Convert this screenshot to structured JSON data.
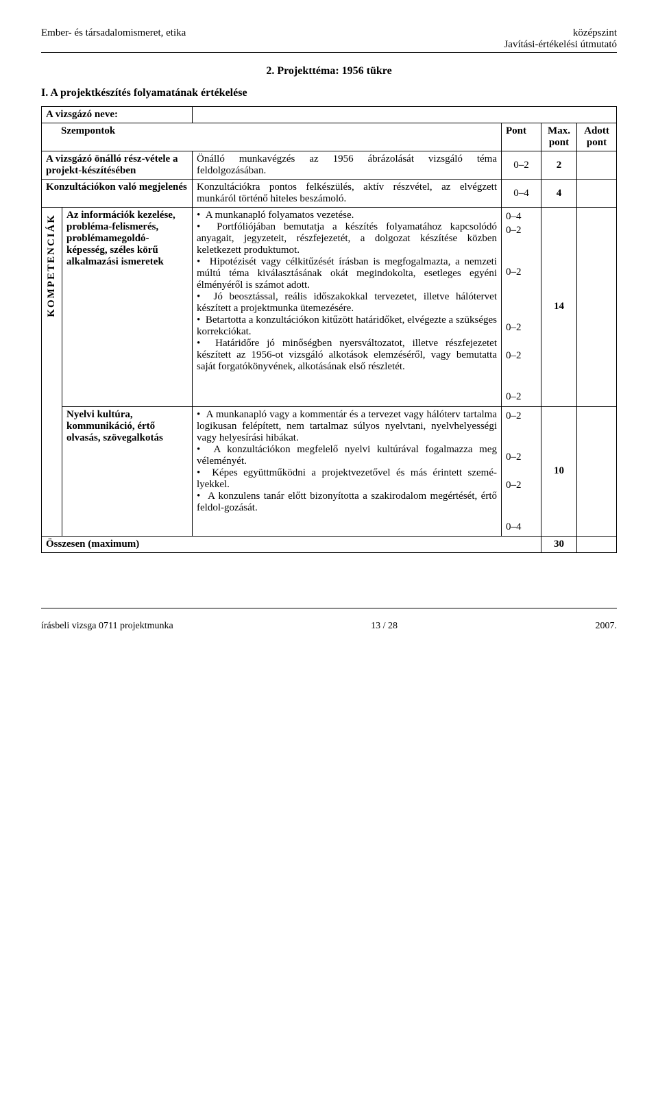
{
  "header": {
    "left": "Ember- és társadalomismeret, etika",
    "right_top": "középszint",
    "right_bottom": "Javítási-értékelési útmutató"
  },
  "section_title": "2. Projekttéma: 1956 tükre",
  "subsection_title": "I. A projektkészítés folyamatának értékelése",
  "table": {
    "name_label": "A vizsgázó neve:",
    "col_szempontok": "Szempontok",
    "col_pont": "Pont",
    "col_max_l1": "Max.",
    "col_max_l2": "pont",
    "col_adott_l1": "Adott",
    "col_adott_l2": "pont",
    "row1": {
      "label": "A vizsgázó önálló rész-vétele a projekt-készítésében",
      "desc": "Önálló munkavégzés az 1956 ábrázolását vizsgáló téma feldolgozásában.",
      "pont": "0–2",
      "max": "2"
    },
    "row2": {
      "label": "Konzultációkon való megjelenés",
      "desc": "Konzultációkra pontos felkészülés, aktív részvétel, az elvégzett munkáról történő hiteles beszámoló.",
      "pont": "0–4",
      "max": "4"
    },
    "vertical_label": "KOMPETENCIÁK",
    "row3": {
      "label": "Az információk kezelése, probléma-felismerés, problémamegoldó-képesség, széles körű alkalmazási ismeretek",
      "b1": "A munkanapló folyamatos vezetése.",
      "b2": "Portfóliójában bemutatja a készítés folyamatához kapcsolódó anyagait, jegyzeteit, részfejezetét, a dolgozat készítése közben keletkezett produktumot.",
      "b3": "Hipotézisét vagy célkitűzését írásban is megfogalmazta, a nemzeti múltú téma kiválasztásának okát megindokolta, esetleges egyéni élményéről is számot adott.",
      "b4": "Jó beosztással, reális időszakokkal tervezetet, illetve hálótervet készített a projektmunka ütemezésére.",
      "b5": "Betartotta a konzultációkon kitűzött határidőket, elvégezte a szükséges korrekciókat.",
      "b6": "Határidőre jó minőségben nyersváltozatot, illetve részfejezetet készített az 1956-ot vizsgáló alkotások elemzéséről, vagy bemutatta saját forgatókönyvének, alkotásának első részletét.",
      "ponts": [
        "0–4",
        "0–2",
        "",
        "",
        "0–2",
        "",
        "",
        "",
        "0–2",
        "",
        "0–2",
        "",
        "",
        "0–2"
      ],
      "max": "14"
    },
    "row4": {
      "label": "Nyelvi kultúra, kommunikáció, értő olvasás, szövegalkotás",
      "b1": "A munkanapló vagy a kommentár és a tervezet vagy hálóterv tartalma logikusan felépített, nem tartalmaz súlyos nyelvtani, nyelvhelyességi vagy helyesírási hibákat.",
      "b2": "A konzultációkon megfelelő nyelvi kultúrával fogalmazza meg véleményét.",
      "b3": "Képes együttműködni a projektvezetővel és más érintett szemé-lyekkel.",
      "b4": "A konzulens tanár előtt bizonyította a szakirodalom megértését, értő feldol-gozását.",
      "ponts": [
        "0–2",
        "",
        "",
        "0–2",
        "",
        "0–2",
        "",
        "",
        "0–4"
      ],
      "max": "10"
    },
    "sum_label": "Összesen (maximum)",
    "sum_value": "30"
  },
  "footer": {
    "left": "írásbeli vizsga 0711 projektmunka",
    "center": "13 / 28",
    "right": "2007."
  }
}
